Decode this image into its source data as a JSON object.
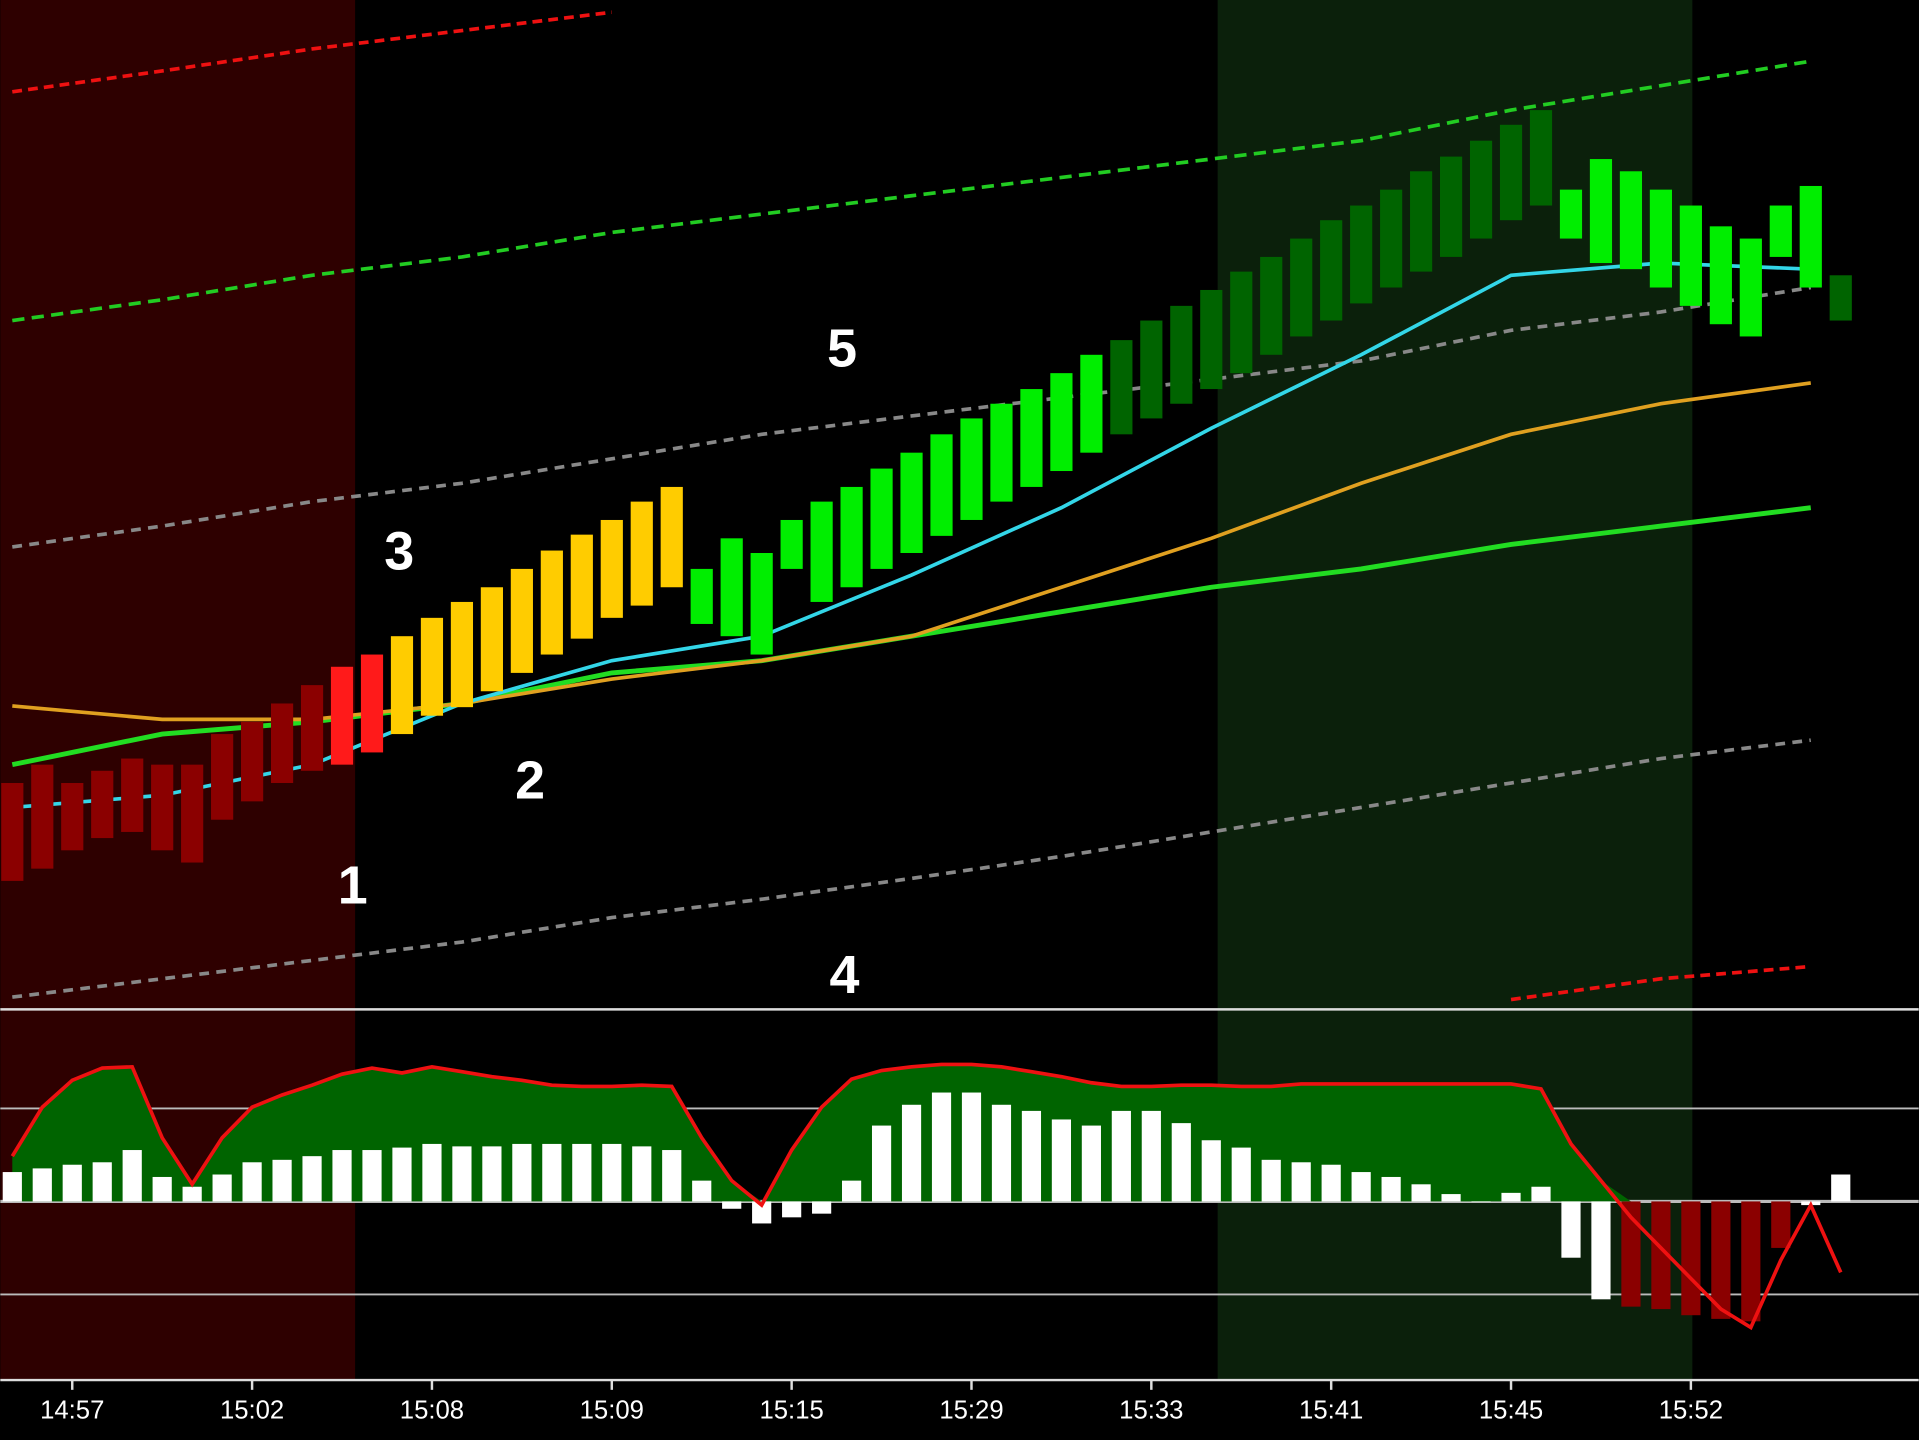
{
  "chart_data": {
    "type": "candlestick",
    "xlim": [
      -0.4,
      63.6
    ],
    "xticks": [
      {
        "value": 2,
        "label": "14:57"
      },
      {
        "value": 8,
        "label": "15:02"
      },
      {
        "value": 14,
        "label": "15:08"
      },
      {
        "value": 20,
        "label": "15:09"
      },
      {
        "value": 26,
        "label": "15:15"
      },
      {
        "value": 32,
        "label": "15:29"
      },
      {
        "value": 38,
        "label": "15:33"
      },
      {
        "value": 44,
        "label": "15:41"
      },
      {
        "value": 50,
        "label": "15:45"
      },
      {
        "value": 56,
        "label": "15:52"
      }
    ],
    "ylim": [
      0,
      825
    ],
    "candles": {
      "open": [
        105,
        115,
        130,
        140,
        145,
        130,
        120,
        155,
        170,
        185,
        195,
        200,
        210,
        225,
        240,
        247,
        260,
        275,
        290,
        303,
        320,
        330,
        345,
        315,
        305,
        290,
        360,
        333,
        345,
        360,
        373,
        387,
        400,
        415,
        427,
        440,
        455,
        470,
        483,
        495,
        507,
        520,
        535,
        550,
        563,
        577,
        590,
        603,
        615,
        630,
        645,
        657,
        630,
        610,
        605,
        590,
        575,
        560,
        550,
        615,
        590,
        600
      ],
      "close": [
        185,
        200,
        185,
        195,
        205,
        200,
        200,
        225,
        235,
        250,
        265,
        280,
        290,
        305,
        320,
        333,
        345,
        360,
        375,
        388,
        400,
        415,
        427,
        360,
        385,
        373,
        400,
        415,
        427,
        442,
        455,
        470,
        483,
        495,
        507,
        520,
        535,
        547,
        563,
        575,
        588,
        603,
        615,
        630,
        645,
        657,
        670,
        685,
        697,
        710,
        723,
        735,
        670,
        695,
        685,
        670,
        657,
        640,
        630,
        657,
        673,
        563
      ],
      "colors": [
        "#8b0000",
        "#8b0000",
        "#8b0000",
        "#8b0000",
        "#8b0000",
        "#8b0000",
        "#8b0000",
        "#8b0000",
        "#8b0000",
        "#8b0000",
        "#8b0000",
        "#ff1a1a",
        "#ff1a1a",
        "#ffcc00",
        "#ffcc00",
        "#ffcc00",
        "#ffcc00",
        "#ffcc00",
        "#ffcc00",
        "#ffcc00",
        "#ffcc00",
        "#ffcc00",
        "#ffcc00",
        "#00ee00",
        "#00ee00",
        "#00ee00",
        "#00ee00",
        "#00ee00",
        "#00ee00",
        "#00ee00",
        "#00ee00",
        "#00ee00",
        "#00ee00",
        "#00ee00",
        "#00ee00",
        "#00ee00",
        "#00ee00",
        "#006400",
        "#006400",
        "#006400",
        "#006400",
        "#006400",
        "#006400",
        "#006400",
        "#006400",
        "#006400",
        "#006400",
        "#006400",
        "#006400",
        "#006400",
        "#006400",
        "#006400",
        "#00ee00",
        "#00ee00",
        "#00ee00",
        "#00ee00",
        "#00ee00",
        "#00ee00",
        "#00ee00",
        "#00ee00",
        "#00ee00",
        "#006400"
      ]
    },
    "line_x": [
      0,
      5,
      10,
      15,
      20,
      25,
      30,
      35,
      40,
      45,
      50,
      55,
      60
    ],
    "lines": [
      {
        "color": "#ee1111",
        "dash": "8 5",
        "width": 3,
        "values": [
          750,
          767,
          785,
          800,
          815,
          null,
          null,
          null,
          null,
          null,
          null,
          null,
          null
        ]
      },
      {
        "color": "#ee1111",
        "dash": "8 5",
        "width": 3,
        "values": [
          null,
          null,
          null,
          null,
          null,
          null,
          null,
          null,
          null,
          null,
          8,
          25,
          35
        ]
      },
      {
        "color": "#22cc22",
        "dash": "10 6",
        "width": 3,
        "values": [
          563,
          580,
          600,
          615,
          635,
          650,
          665,
          680,
          695,
          710,
          735,
          755,
          775
        ]
      },
      {
        "color": "#888888",
        "dash": "8 6",
        "width": 3,
        "values": [
          378,
          395,
          415,
          430,
          450,
          470,
          485,
          500,
          515,
          530,
          555,
          570,
          590
        ]
      },
      {
        "color": "#888888",
        "dash": "8 6",
        "width": 3,
        "values": [
          10,
          25,
          40,
          55,
          75,
          90,
          107,
          125,
          145,
          165,
          185,
          205,
          220
        ]
      },
      {
        "color": "#22dd22",
        "dash": "none",
        "width": 4,
        "values": [
          200,
          225,
          235,
          250,
          275,
          285,
          305,
          325,
          345,
          360,
          380,
          395,
          410
        ]
      },
      {
        "color": "#e0a020",
        "dash": "none",
        "width": 3,
        "values": [
          248,
          237,
          237,
          250,
          270,
          285,
          305,
          345,
          385,
          430,
          470,
          495,
          512
        ]
      },
      {
        "color": "#33d6e8",
        "dash": "none",
        "width": 3,
        "values": [
          165,
          175,
          200,
          250,
          285,
          305,
          355,
          410,
          475,
          535,
          600,
          610,
          605
        ]
      }
    ],
    "indicator": {
      "ylim": [
        -146,
        157
      ],
      "ref_lines": [
        -76,
        0,
        76
      ],
      "envelope": {
        "fill": "#006400",
        "line_color": "#ee1111",
        "values": [
          37,
          77,
          99,
          109,
          110,
          52,
          14,
          52,
          77,
          87,
          95,
          104,
          109,
          105,
          110,
          106,
          102,
          99,
          95,
          94,
          94,
          95,
          94,
          52,
          17,
          -3,
          42,
          77,
          100,
          107,
          110,
          112,
          112,
          110,
          106,
          102,
          97,
          94,
          94,
          95,
          95,
          94,
          94,
          96,
          96,
          96,
          96,
          96,
          96,
          96,
          96,
          92,
          47,
          17,
          -13,
          -38,
          -63,
          -88,
          -103,
          -48,
          -3,
          -58
        ]
      },
      "histogram": {
        "values": [
          24,
          27,
          30,
          32,
          42,
          20,
          12,
          22,
          32,
          34,
          37,
          42,
          42,
          44,
          47,
          45,
          45,
          47,
          47,
          47,
          47,
          45,
          42,
          17,
          -6,
          -18,
          -13,
          -10,
          17,
          62,
          79,
          89,
          89,
          79,
          74,
          67,
          62,
          74,
          74,
          64,
          50,
          44,
          34,
          32,
          30,
          24,
          20,
          14,
          6,
          0,
          7,
          12,
          -46,
          -80,
          -86,
          -88,
          -93,
          -96,
          -98,
          -38,
          -3,
          22
        ],
        "colors": [
          "#ffffff",
          "#ffffff",
          "#ffffff",
          "#ffffff",
          "#ffffff",
          "#ffffff",
          "#ffffff",
          "#ffffff",
          "#ffffff",
          "#ffffff",
          "#ffffff",
          "#ffffff",
          "#ffffff",
          "#ffffff",
          "#ffffff",
          "#ffffff",
          "#ffffff",
          "#ffffff",
          "#ffffff",
          "#ffffff",
          "#ffffff",
          "#ffffff",
          "#ffffff",
          "#ffffff",
          "#ffffff",
          "#ffffff",
          "#ffffff",
          "#ffffff",
          "#ffffff",
          "#ffffff",
          "#ffffff",
          "#ffffff",
          "#ffffff",
          "#ffffff",
          "#ffffff",
          "#ffffff",
          "#ffffff",
          "#ffffff",
          "#ffffff",
          "#ffffff",
          "#ffffff",
          "#ffffff",
          "#ffffff",
          "#ffffff",
          "#ffffff",
          "#ffffff",
          "#ffffff",
          "#ffffff",
          "#ffffff",
          "#ffffff",
          "#ffffff",
          "#ffffff",
          "#ffffff",
          "#ffffff",
          "#8b0000",
          "#8b0000",
          "#8b0000",
          "#8b0000",
          "#8b0000",
          "#8b0000",
          "#ffffff",
          "#ffffff"
        ]
      }
    },
    "annotations": [
      "1",
      "2",
      "3",
      "4",
      "5"
    ]
  }
}
